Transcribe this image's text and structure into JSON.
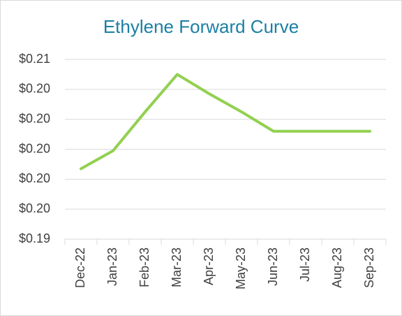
{
  "chart_data": {
    "type": "line",
    "title": "Ethylene Forward Curve",
    "categories": [
      "Dec-22",
      "Jan-23",
      "Feb-23",
      "Mar-23",
      "Apr-23",
      "May-23",
      "Jun-23",
      "Jul-23",
      "Aug-23",
      "Sep-23"
    ],
    "series": [
      {
        "name": "Ethylene",
        "color": "#92d050",
        "values": [
          0.1987,
          0.1999,
          0.2025,
          0.205,
          0.2037,
          0.2025,
          0.2012,
          0.2012,
          0.2012,
          0.2012
        ]
      }
    ],
    "ylim": [
      0.194,
      0.206
    ],
    "yticks": [
      {
        "value": 0.194,
        "label": "$0.19"
      },
      {
        "value": 0.196,
        "label": "$0.20"
      },
      {
        "value": 0.198,
        "label": "$0.20"
      },
      {
        "value": 0.2,
        "label": "$0.20"
      },
      {
        "value": 0.202,
        "label": "$0.20"
      },
      {
        "value": 0.204,
        "label": "$0.20"
      },
      {
        "value": 0.206,
        "label": "$0.21"
      }
    ],
    "grid": true
  }
}
